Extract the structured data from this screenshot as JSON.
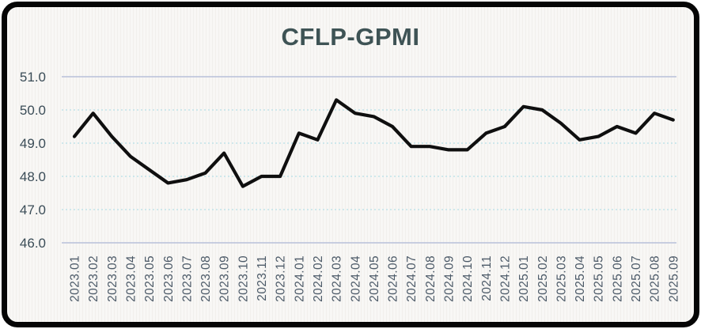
{
  "chart_data": {
    "type": "line",
    "title": "CFLP-GPMI",
    "categories": [
      "2023.01",
      "2023.02",
      "2023.03",
      "2023.04",
      "2023.05",
      "2023.06",
      "2023.07",
      "2023.08",
      "2023.09",
      "2023.10",
      "2023.11",
      "2023.12",
      "2024.01",
      "2024.02",
      "2024.03",
      "2024.04",
      "2024.05",
      "2024.06",
      "2024.07",
      "2024.08",
      "2024.09",
      "2024.10",
      "2024.11",
      "2024.12",
      "2025.01",
      "2025.02",
      "2025.03",
      "2025.04",
      "2025.05",
      "2025.06",
      "2025.07",
      "2025.08",
      "2025.09"
    ],
    "values": [
      49.2,
      49.9,
      49.2,
      48.6,
      48.2,
      47.8,
      47.9,
      48.1,
      48.7,
      47.7,
      48.0,
      48.0,
      49.3,
      49.1,
      50.3,
      49.9,
      49.8,
      49.5,
      48.9,
      48.9,
      48.8,
      48.8,
      49.3,
      49.5,
      50.1,
      50.0,
      49.6,
      49.1,
      49.2,
      49.5,
      49.3,
      49.9,
      49.7
    ],
    "xlabel": "",
    "ylabel": "",
    "ylim": [
      46.0,
      51.0
    ],
    "y_ticks": [
      51.0,
      50.0,
      49.0,
      48.0,
      47.0,
      46.0
    ],
    "y_tick_labels": [
      "51.0",
      "50.0",
      "49.0",
      "48.0",
      "47.0",
      "46.0"
    ],
    "grid": "horizontal",
    "legend_position": "none",
    "x_label_rotation_degrees": 90
  },
  "colors": {
    "line": "#0f0f0f",
    "title_text": "#3e5355",
    "y_tick_text": "#3a4c57",
    "x_tick_text": "#4c5a68",
    "gridline_dashed": "#bfe3ea",
    "gridline_boundary": "#b7c0da",
    "card_background": "#f6f5f3",
    "frame_border": "#050505"
  }
}
